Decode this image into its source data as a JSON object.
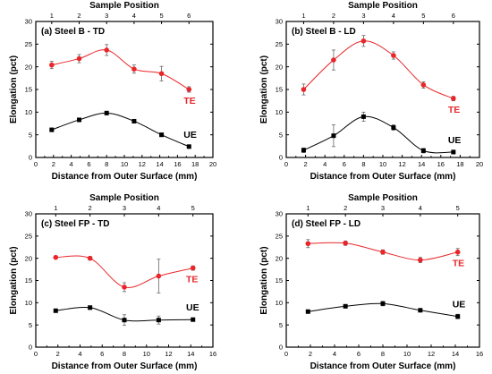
{
  "chart_data": [
    {
      "type": "scatter",
      "panel_title": "(a) Steel B - TD",
      "xlabel": "Distance from Outer Surface (mm)",
      "ylabel": "Elongation (pct)",
      "top_xlabel": "Sample Position",
      "xlim": [
        0,
        20
      ],
      "ylim": [
        0,
        30
      ],
      "x_ticks": [
        "0",
        "2",
        "4",
        "6",
        "8",
        "10",
        "12",
        "14",
        "16",
        "18",
        "20"
      ],
      "y_ticks": [
        "0",
        "5",
        "10",
        "15",
        "20",
        "25",
        "30"
      ],
      "top_ticks": [
        "1",
        "2",
        "3",
        "4",
        "5",
        "6"
      ],
      "top_tick_x": [
        1.8,
        4.9,
        8.0,
        11.1,
        14.2,
        17.3
      ],
      "series": [
        {
          "name": "TE",
          "color": "#e8262a",
          "marker": "circle",
          "x": [
            1.8,
            4.9,
            8.0,
            11.1,
            14.2,
            17.3
          ],
          "y": [
            20.4,
            21.8,
            23.7,
            19.5,
            18.5,
            15.0
          ],
          "err": [
            0.8,
            0.9,
            1.2,
            0.9,
            1.6,
            0.6
          ]
        },
        {
          "name": "UE",
          "color": "#000000",
          "marker": "square",
          "x": [
            1.8,
            4.9,
            8.0,
            11.1,
            14.2,
            17.3
          ],
          "y": [
            6.1,
            8.3,
            9.8,
            8.0,
            5.0,
            2.4
          ],
          "err": [
            0.4,
            0.4,
            0.4,
            0.4,
            0.4,
            0.3
          ]
        }
      ]
    },
    {
      "type": "scatter",
      "panel_title": "(b) Steel B - LD",
      "xlabel": "Distance from Outer Surface (mm)",
      "ylabel": "Elongation (pct)",
      "top_xlabel": "Sample Position",
      "xlim": [
        0,
        20
      ],
      "ylim": [
        0,
        30
      ],
      "x_ticks": [
        "0",
        "2",
        "4",
        "6",
        "8",
        "10",
        "12",
        "14",
        "16",
        "18",
        "20"
      ],
      "y_ticks": [
        "0",
        "5",
        "10",
        "15",
        "20",
        "25",
        "30"
      ],
      "top_ticks": [
        "1",
        "2",
        "3",
        "4",
        "5",
        "6"
      ],
      "top_tick_x": [
        1.8,
        4.9,
        8.0,
        11.1,
        14.2,
        17.3
      ],
      "series": [
        {
          "name": "TE",
          "color": "#e8262a",
          "marker": "circle",
          "x": [
            1.8,
            4.9,
            8.0,
            11.1,
            14.2,
            17.3
          ],
          "y": [
            15.0,
            21.5,
            25.7,
            22.5,
            16.0,
            13.0
          ],
          "err": [
            1.2,
            2.2,
            1.2,
            0.8,
            0.7,
            0.5
          ]
        },
        {
          "name": "UE",
          "color": "#000000",
          "marker": "square",
          "x": [
            1.8,
            4.9,
            8.0,
            11.1,
            14.2,
            17.3
          ],
          "y": [
            1.6,
            4.8,
            9.0,
            6.6,
            1.5,
            1.2
          ],
          "err": [
            0.5,
            2.4,
            1.0,
            0.6,
            0.5,
            0.4
          ]
        }
      ]
    },
    {
      "type": "scatter",
      "panel_title": "(c) Steel FP - TD",
      "xlabel": "Distance from Outer Surface (mm)",
      "ylabel": "Elongation (pct)",
      "top_xlabel": "Sample Position",
      "xlim": [
        0,
        16
      ],
      "ylim": [
        0,
        30
      ],
      "x_ticks": [
        "0",
        "2",
        "4",
        "6",
        "8",
        "10",
        "12",
        "14",
        "16"
      ],
      "y_ticks": [
        "0",
        "5",
        "10",
        "15",
        "20",
        "25",
        "30"
      ],
      "top_ticks": [
        "1",
        "2",
        "3",
        "4",
        "5"
      ],
      "top_tick_x": [
        1.8,
        4.9,
        8.0,
        11.1,
        14.2
      ],
      "series": [
        {
          "name": "TE",
          "color": "#e8262a",
          "marker": "circle",
          "x": [
            1.8,
            4.9,
            8.0,
            11.1,
            14.2
          ],
          "y": [
            20.2,
            20.0,
            13.5,
            16.0,
            17.8
          ],
          "err": [
            0.3,
            0.4,
            1.0,
            3.8,
            0.5
          ]
        },
        {
          "name": "UE",
          "color": "#000000",
          "marker": "square",
          "x": [
            1.8,
            4.9,
            8.0,
            11.1,
            14.2
          ],
          "y": [
            8.2,
            8.9,
            6.1,
            6.1,
            6.2
          ],
          "err": [
            0.3,
            0.4,
            1.2,
            0.9,
            0.3
          ]
        }
      ]
    },
    {
      "type": "scatter",
      "panel_title": "(d) Steel FP - LD",
      "xlabel": "Distance from Outer Surface (mm)",
      "ylabel": "Elongation (pct)",
      "top_xlabel": "Sample Position",
      "xlim": [
        0,
        16
      ],
      "ylim": [
        0,
        30
      ],
      "x_ticks": [
        "0",
        "2",
        "4",
        "6",
        "8",
        "10",
        "12",
        "14",
        "16"
      ],
      "y_ticks": [
        "0",
        "5",
        "10",
        "15",
        "20",
        "25",
        "30"
      ],
      "top_ticks": [
        "1",
        "2",
        "3",
        "4",
        "5"
      ],
      "top_tick_x": [
        1.8,
        4.9,
        8.0,
        11.1,
        14.2
      ],
      "series": [
        {
          "name": "TE",
          "color": "#e8262a",
          "marker": "circle",
          "x": [
            1.8,
            4.9,
            8.0,
            11.1,
            14.2
          ],
          "y": [
            23.3,
            23.4,
            21.4,
            19.6,
            21.4
          ],
          "err": [
            0.9,
            0.5,
            0.5,
            0.6,
            0.8
          ]
        },
        {
          "name": "UE",
          "color": "#000000",
          "marker": "square",
          "x": [
            1.8,
            4.9,
            8.0,
            11.1,
            14.2
          ],
          "y": [
            8.0,
            9.2,
            9.8,
            8.3,
            6.9
          ],
          "err": [
            0.3,
            0.3,
            0.5,
            0.3,
            0.5
          ]
        }
      ]
    }
  ]
}
